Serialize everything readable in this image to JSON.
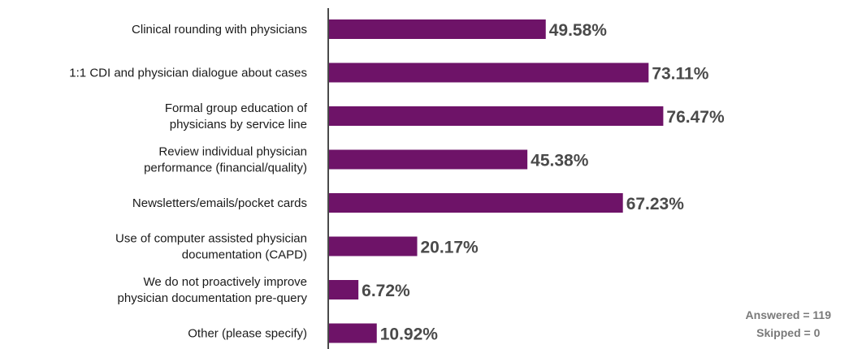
{
  "chart_data": {
    "type": "bar",
    "orientation": "horizontal",
    "categories": [
      [
        "Clinical rounding with physicians"
      ],
      [
        "1:1 CDI and physician dialogue about cases"
      ],
      [
        "Formal group education of",
        "physicians by service line"
      ],
      [
        "Review individual physician",
        "performance (financial/quality)"
      ],
      [
        "Newsletters/emails/pocket cards"
      ],
      [
        "Use of computer assisted physician",
        "documentation (CAPD)"
      ],
      [
        "We do not proactively improve",
        "physician documentation pre-query"
      ],
      [
        "Other (please specify)"
      ]
    ],
    "values": [
      49.58,
      73.11,
      76.47,
      45.38,
      67.23,
      20.17,
      6.72,
      10.92
    ],
    "value_labels": [
      "49.58%",
      "73.11%",
      "76.47%",
      "45.38%",
      "67.23%",
      "20.17%",
      "6.72%",
      "10.92%"
    ],
    "xlim": [
      0,
      100
    ],
    "grid": false,
    "bar_color": "#6e1368",
    "value_label_color": "#4a4a4a"
  },
  "summary": {
    "answered": "Answered = 119",
    "skipped": "Skipped = 0"
  }
}
